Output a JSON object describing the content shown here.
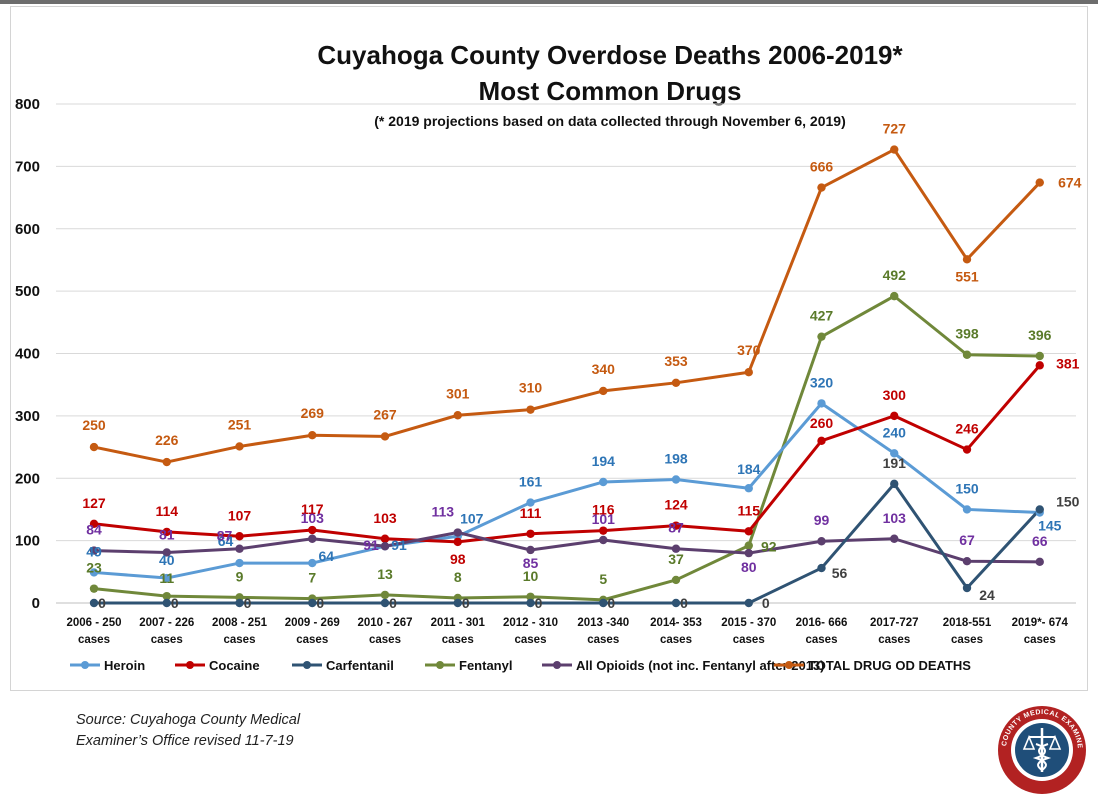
{
  "chart_data": {
    "type": "line",
    "title": "Cuyahoga County Overdose Deaths 2006-2019*",
    "title2": "Most Common Drugs",
    "subtitle": "(* 2019 projections based on data collected through November 6, 2019)",
    "ylim": [
      0,
      800
    ],
    "yticks": [
      "0",
      "100",
      "200",
      "300",
      "400",
      "500",
      "600",
      "700",
      "800"
    ],
    "grid": true,
    "legend_position": "bottom",
    "categories": [
      [
        "2006 - 250",
        "cases"
      ],
      [
        "2007 - 226",
        "cases"
      ],
      [
        "2008 - 251",
        "cases"
      ],
      [
        "2009 - 269",
        "cases"
      ],
      [
        "2010 - 267",
        "cases"
      ],
      [
        "2011 - 301",
        "cases"
      ],
      [
        "2012 - 310",
        "cases"
      ],
      [
        "2013 -340",
        "cases"
      ],
      [
        "2014- 353",
        "cases"
      ],
      [
        "2015 - 370",
        "cases"
      ],
      [
        "2016- 666",
        "cases"
      ],
      [
        "2017-727",
        "cases"
      ],
      [
        "2018-551",
        "cases"
      ],
      [
        "2019*- 674",
        "cases"
      ]
    ],
    "series": [
      {
        "name": "Heroin",
        "color": "#5b9bd5",
        "label_color": "#2e75b6",
        "values": [
          49,
          40,
          64,
          64,
          91,
          107,
          161,
          194,
          198,
          184,
          320,
          240,
          150,
          145
        ],
        "labels": [
          "49",
          "40",
          "64",
          "64",
          "91",
          "107",
          "161",
          "194",
          "198",
          "184",
          "320",
          "240",
          "150",
          "145"
        ]
      },
      {
        "name": "Cocaine",
        "color": "#c00000",
        "label_color": "#c00000",
        "values": [
          127,
          114,
          107,
          117,
          103,
          98,
          111,
          116,
          124,
          115,
          260,
          300,
          246,
          381
        ],
        "labels": [
          "127",
          "114",
          "107",
          "117",
          "103",
          "98",
          "111",
          "116",
          "124",
          "115",
          "260",
          "300",
          "246",
          "381"
        ]
      },
      {
        "name": "Carfentanil",
        "color": "#2f5373",
        "label_color": "#404040",
        "values": [
          0,
          0,
          0,
          0,
          0,
          0,
          0,
          0,
          0,
          0,
          56,
          191,
          24,
          150
        ],
        "labels": [
          "0",
          "0",
          "0",
          "0",
          "0",
          "0",
          "0",
          "0",
          "0",
          "0",
          "56",
          "191",
          "24",
          "150"
        ]
      },
      {
        "name": "Fentanyl",
        "color": "#70883a",
        "label_color": "#5a7a2a",
        "values": [
          23,
          11,
          9,
          7,
          13,
          8,
          10,
          5,
          37,
          92,
          427,
          492,
          398,
          396
        ],
        "labels": [
          "23",
          "11",
          "9",
          "7",
          "13",
          "8",
          "10",
          "5",
          "37",
          "92",
          "427",
          "492",
          "398",
          "396"
        ]
      },
      {
        "name": "All Opioids (not inc. Fentanyl after 2013)",
        "color": "#5c3f6e",
        "label_color": "#7030a0",
        "values": [
          84,
          81,
          87,
          103,
          91,
          113,
          85,
          101,
          87,
          80,
          99,
          103,
          67,
          66
        ],
        "labels": [
          "84",
          "81",
          "87",
          "103",
          "91",
          "113",
          "85",
          "101",
          "87",
          "80",
          "99",
          "103",
          "67",
          "66"
        ]
      },
      {
        "name": "TOTAL DRUG OD DEATHS",
        "color": "#c55a11",
        "label_color": "#c55a11",
        "values": [
          250,
          226,
          251,
          269,
          267,
          301,
          310,
          340,
          353,
          370,
          666,
          727,
          551,
          674
        ],
        "labels": [
          "250",
          "226",
          "251",
          "269",
          "267",
          "301",
          "310",
          "340",
          "353",
          "370",
          "666",
          "727",
          "551",
          "674"
        ]
      }
    ]
  },
  "source": {
    "line1": "Source: Cuyahoga County Medical",
    "line2": "Examiner’s Office revised 11-7-19"
  },
  "seal": {
    "text": "CUYAHOGA COUNTY MEDICAL EXAMINER'S OFFICE",
    "icon": "caduceus-scales-seal-icon",
    "color": "#b22222"
  }
}
